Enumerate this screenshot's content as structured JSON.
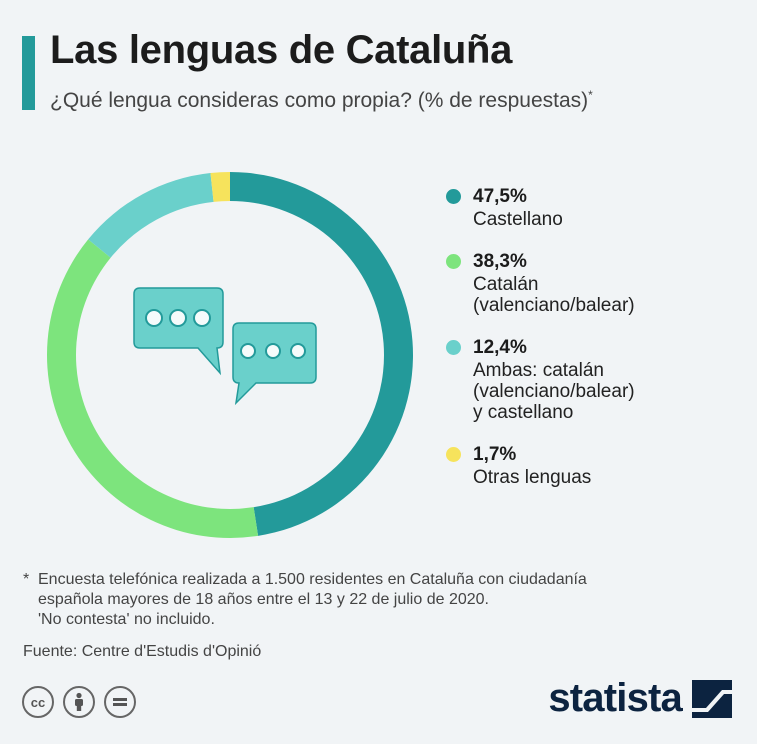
{
  "header": {
    "title": "Las lenguas de Cataluña",
    "subtitle": "¿Qué lengua consideras como propia? (% de respuestas)",
    "subtitle_marker": "*"
  },
  "chart_data": {
    "type": "pie",
    "variant": "donut",
    "title": "Las lenguas de Cataluña",
    "subtitle": "¿Qué lengua consideras como propia? (% de respuestas)",
    "unit": "%",
    "slices": [
      {
        "value_label": "47,5%",
        "label": "Castellano",
        "value": 47.5,
        "color": "#239a9a"
      },
      {
        "value_label": "38,3%",
        "label": "Catalán\n(valenciano/balear)",
        "value": 38.3,
        "color": "#7de47d"
      },
      {
        "value_label": "12,4%",
        "label": "Ambas: catalán\n(valenciano/balear)\ny castellano",
        "value": 12.4,
        "color": "#6ad0cb"
      },
      {
        "value_label": "1,7%",
        "label": "Otras lenguas",
        "value": 1.7,
        "color": "#f6e35c"
      }
    ],
    "legend_position": "right"
  },
  "center_icon": "speech-bubbles-icon",
  "footnote": {
    "marker": "*",
    "text": "Encuesta telefónica realizada a 1.500 residentes en Cataluña con ciudadanía\nespañola mayores de 18 años entre el 13 y 22 de julio de 2020.\n'No contesta' no incluido."
  },
  "source": "Fuente: Centre d'Estudis d'Opinió",
  "footer": {
    "license_icons": [
      "cc-icon",
      "attribution-icon",
      "no-derivatives-icon"
    ],
    "brand": "statista"
  }
}
